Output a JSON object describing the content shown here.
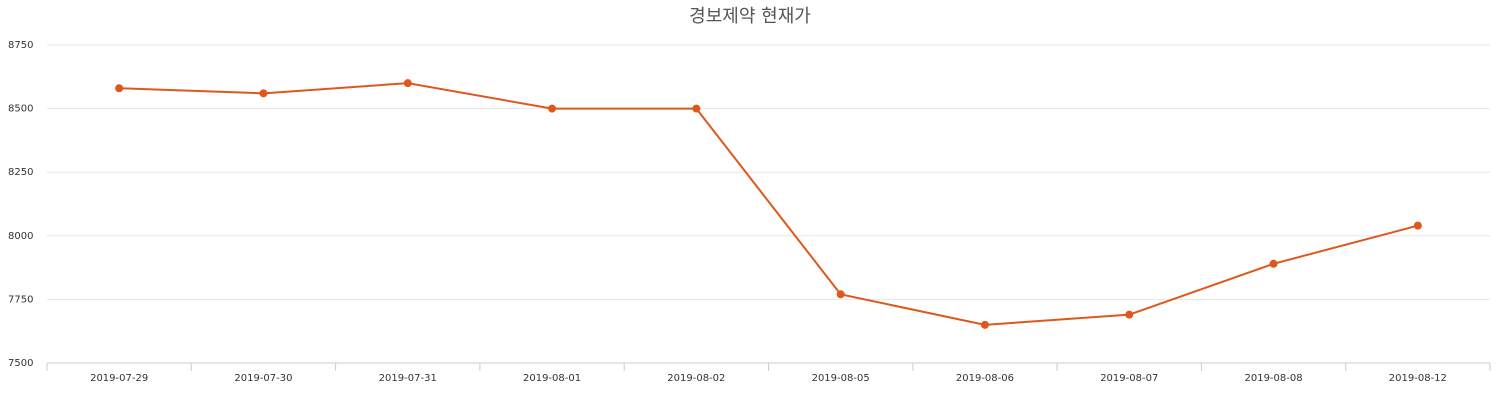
{
  "chart_data": {
    "type": "line",
    "title": "경보제약 현재가",
    "categories": [
      "2019-07-29",
      "2019-07-30",
      "2019-07-31",
      "2019-08-01",
      "2019-08-02",
      "2019-08-05",
      "2019-08-06",
      "2019-08-07",
      "2019-08-08",
      "2019-08-12"
    ],
    "series": [
      {
        "name": "현재가",
        "color": "#e0571c",
        "values": [
          8580,
          8560,
          8600,
          8500,
          8500,
          7770,
          7650,
          7690,
          7890,
          8040
        ]
      }
    ],
    "ylim": [
      7500,
      8750
    ],
    "yticks": [
      7500,
      7750,
      8000,
      8250,
      8500,
      8750
    ],
    "grid": true
  }
}
